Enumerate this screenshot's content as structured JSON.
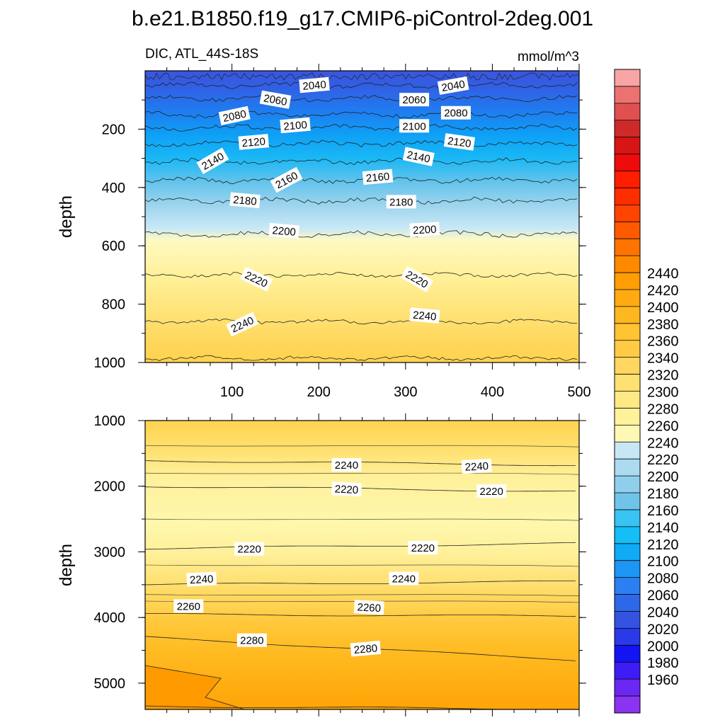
{
  "title": "b.e21.B1850.f19_g17.CMIP6-piControl-2deg.001",
  "chart_data": [
    {
      "type": "heatmap",
      "panel": "upper",
      "left_label": "DIC, ATL_44S-18S",
      "right_label": "mmol/m^3",
      "ylabel": "depth",
      "xlabel": "",
      "xlim": [
        0,
        500
      ],
      "ylim": [
        1000,
        0
      ],
      "x_ticks": [
        100,
        200,
        300,
        400,
        500
      ],
      "y_ticks": [
        200,
        400,
        600,
        800,
        1000
      ],
      "contours": [
        {
          "level": 2040,
          "depth": 50
        },
        {
          "level": 2060,
          "depth": 95
        },
        {
          "level": 2080,
          "depth": 150
        },
        {
          "level": 2100,
          "depth": 195
        },
        {
          "level": 2120,
          "depth": 250
        },
        {
          "level": 2140,
          "depth": 310
        },
        {
          "level": 2160,
          "depth": 375
        },
        {
          "level": 2180,
          "depth": 445
        },
        {
          "level": 2200,
          "depth": 560
        },
        {
          "level": 2220,
          "depth": 700
        },
        {
          "level": 2240,
          "depth": 860
        },
        {
          "level": 2260,
          "depth": 985
        }
      ],
      "contour_labels": [
        {
          "text": "2040",
          "x": 195,
          "depth": 50,
          "angle": -5
        },
        {
          "text": "2040",
          "x": 355,
          "depth": 52,
          "angle": -10
        },
        {
          "text": "2060",
          "x": 150,
          "depth": 100,
          "angle": 10
        },
        {
          "text": "2060",
          "x": 310,
          "depth": 100,
          "angle": 0
        },
        {
          "text": "2080",
          "x": 103,
          "depth": 155,
          "angle": -12
        },
        {
          "text": "2080",
          "x": 358,
          "depth": 145,
          "angle": 0
        },
        {
          "text": "2100",
          "x": 173,
          "depth": 188,
          "angle": -5
        },
        {
          "text": "2100",
          "x": 310,
          "depth": 190,
          "angle": 0
        },
        {
          "text": "2120",
          "x": 125,
          "depth": 245,
          "angle": -5
        },
        {
          "text": "2120",
          "x": 362,
          "depth": 245,
          "angle": 8
        },
        {
          "text": "2140",
          "x": 78,
          "depth": 310,
          "angle": -30
        },
        {
          "text": "2140",
          "x": 315,
          "depth": 295,
          "angle": 12
        },
        {
          "text": "2160",
          "x": 163,
          "depth": 375,
          "angle": -28
        },
        {
          "text": "2160",
          "x": 268,
          "depth": 365,
          "angle": -5
        },
        {
          "text": "2180",
          "x": 115,
          "depth": 445,
          "angle": 5
        },
        {
          "text": "2180",
          "x": 295,
          "depth": 450,
          "angle": 0
        },
        {
          "text": "2200",
          "x": 160,
          "depth": 550,
          "angle": 5
        },
        {
          "text": "2200",
          "x": 322,
          "depth": 545,
          "angle": -3
        },
        {
          "text": "2220",
          "x": 128,
          "depth": 715,
          "angle": 25
        },
        {
          "text": "2220",
          "x": 313,
          "depth": 715,
          "angle": 30
        },
        {
          "text": "2240",
          "x": 112,
          "depth": 870,
          "angle": -25
        },
        {
          "text": "2240",
          "x": 322,
          "depth": 840,
          "angle": 5
        }
      ]
    },
    {
      "type": "heatmap",
      "panel": "lower",
      "ylabel": "depth",
      "xlabel": "",
      "xlim": [
        0,
        500
      ],
      "ylim": [
        1000,
        5400
      ],
      "x_ticks": [
        100,
        200,
        300,
        400,
        500
      ],
      "y_ticks": [
        1000,
        2000,
        3000,
        4000,
        5000
      ],
      "contours": [
        {
          "level": 2240,
          "depth_left": 1610,
          "depth_right": 1680
        },
        {
          "level": 2220,
          "depth_left": 2000,
          "depth_right": 2080
        },
        {
          "level": 2220,
          "depth_left": 2950,
          "depth_right": 2870
        },
        {
          "level": 2240,
          "depth_left": 3500,
          "depth_right": 3450
        },
        {
          "level": 2260,
          "depth_left": 3950,
          "depth_right": 3980
        },
        {
          "level": 2280,
          "depth_left": 4300,
          "depth_right": 4650
        },
        {
          "level": 2300,
          "depth_left": 5350,
          "depth_right": 5400
        }
      ],
      "contour_labels": [
        {
          "text": "2240",
          "x": 232,
          "depth": 1680,
          "angle": 0
        },
        {
          "text": "2240",
          "x": 382,
          "depth": 1700,
          "angle": -3
        },
        {
          "text": "2220",
          "x": 232,
          "depth": 2050,
          "angle": 3
        },
        {
          "text": "2220",
          "x": 399,
          "depth": 2080,
          "angle": 0
        },
        {
          "text": "2220",
          "x": 120,
          "depth": 2960,
          "angle": 0
        },
        {
          "text": "2220",
          "x": 320,
          "depth": 2940,
          "angle": 0
        },
        {
          "text": "2240",
          "x": 65,
          "depth": 3420,
          "angle": -3
        },
        {
          "text": "2240",
          "x": 298,
          "depth": 3410,
          "angle": 0
        },
        {
          "text": "2260",
          "x": 50,
          "depth": 3830,
          "angle": 0
        },
        {
          "text": "2260",
          "x": 258,
          "depth": 3850,
          "angle": 3
        },
        {
          "text": "2280",
          "x": 123,
          "depth": 4350,
          "angle": 0
        },
        {
          "text": "2280",
          "x": 254,
          "depth": 4480,
          "angle": -5
        }
      ]
    }
  ],
  "colorbar": {
    "levels": [
      1960,
      1980,
      2000,
      2020,
      2040,
      2060,
      2080,
      2100,
      2120,
      2140,
      2160,
      2180,
      2200,
      2220,
      2240,
      2260,
      2280,
      2300,
      2320,
      2340,
      2360,
      2380,
      2400,
      2420,
      2440
    ],
    "colors": [
      "#8a33f0",
      "#6a28f2",
      "#3d1cf5",
      "#1414f2",
      "#2a3ae8",
      "#3353e0",
      "#2d68e8",
      "#2c7ff0",
      "#1b96f5",
      "#0fabf6",
      "#14bff5",
      "#38c3f3",
      "#70c4e9",
      "#8fcfeb",
      "#acdaef",
      "#c8e7f5",
      "#fff8b4",
      "#fff29a",
      "#ffe985",
      "#ffe072",
      "#ffd65f",
      "#ffcb45",
      "#ffc333",
      "#ffb71f",
      "#ffaa10",
      "#ff9d05",
      "#ff8a00",
      "#ff7300",
      "#ff5a00",
      "#ff4400",
      "#ff2e00",
      "#ff1e00",
      "#ee0b0b",
      "#d81515",
      "#cf2a2a",
      "#e05050",
      "#ec7272",
      "#f7a5a5"
    ],
    "labeled": [
      1960,
      1980,
      2000,
      2020,
      2040,
      2060,
      2080,
      2100,
      2120,
      2140,
      2160,
      2180,
      2200,
      2220,
      2240,
      2260,
      2280,
      2300,
      2320,
      2340,
      2360,
      2380,
      2400,
      2420,
      2440
    ]
  }
}
